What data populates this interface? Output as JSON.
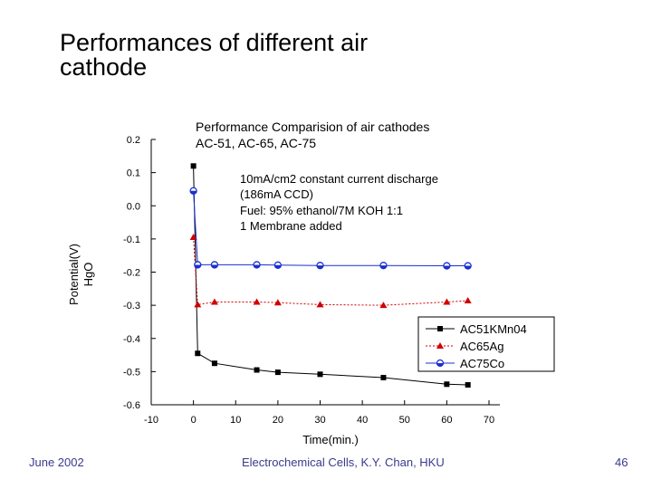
{
  "slide": {
    "title_line1": "Performances of different air",
    "title_line2": "cathode",
    "footer_date": "June 2002",
    "footer_center": "Electrochemical Cells,   K.Y. Chan,   HKU",
    "footer_page": "46"
  },
  "chart_data": {
    "type": "line",
    "title": "Performance Comparision of air cathodes",
    "subtitle": "AC-51, AC-65, AC-75",
    "annotation": [
      "10mA/cm2 constant current discharge",
      "(186mA CCD)",
      "Fuel: 95% ethanol/7M KOH 1:1",
      "1 Membrane added"
    ],
    "xlabel": "Time(min.)",
    "ylabel_line1": "Potential(V)",
    "ylabel_line2": "HgO",
    "xlim": [
      -10,
      70
    ],
    "ylim": [
      -0.6,
      0.2
    ],
    "xticks": [
      -10,
      0,
      10,
      20,
      30,
      40,
      50,
      60,
      70
    ],
    "yticks": [
      0.2,
      0.1,
      0.0,
      -0.1,
      -0.2,
      -0.3,
      -0.4,
      -0.5,
      -0.6
    ],
    "xtick_labels": [
      "-10",
      "0",
      "10",
      "20",
      "30",
      "40",
      "50",
      "60",
      "70"
    ],
    "ytick_labels": [
      "0.2",
      "0.1",
      "0.0",
      "-0.1",
      "-0.2",
      "-0.3",
      "-0.4",
      "-0.5",
      "-0.6"
    ],
    "grid": false,
    "legend_position": "bottom-right",
    "series": [
      {
        "name": "AC51KMn04",
        "color": "#000000",
        "marker": "square",
        "line": "solid",
        "x": [
          0,
          1,
          5,
          15,
          20,
          30,
          45,
          60,
          65
        ],
        "y": [
          0.12,
          -0.445,
          -0.475,
          -0.495,
          -0.502,
          -0.508,
          -0.518,
          -0.538,
          -0.54
        ]
      },
      {
        "name": "AC65Ag",
        "color": "#d00000",
        "marker": "triangle",
        "line": "dotted",
        "x": [
          0,
          1,
          5,
          15,
          20,
          30,
          45,
          60,
          65
        ],
        "y": [
          -0.095,
          -0.298,
          -0.29,
          -0.29,
          -0.292,
          -0.298,
          -0.3,
          -0.29,
          -0.286
        ]
      },
      {
        "name": "AC75Co",
        "color": "#1a2fd0",
        "marker": "circle",
        "line": "solid",
        "x": [
          0,
          1,
          5,
          15,
          20,
          30,
          45,
          60,
          65
        ],
        "y": [
          0.045,
          -0.178,
          -0.178,
          -0.178,
          -0.179,
          -0.18,
          -0.18,
          -0.181,
          -0.181
        ]
      }
    ]
  }
}
